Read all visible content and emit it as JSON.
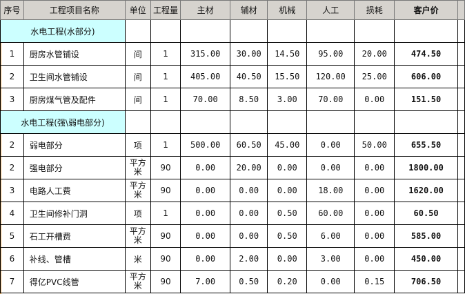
{
  "headers": [
    "序号",
    "工程项目名称",
    "单位",
    "工程量",
    "主材",
    "辅材",
    "机械",
    "人工",
    "损耗",
    "客户价"
  ],
  "rows": [
    {
      "type": "section",
      "label": "水电工程(水部分)"
    },
    {
      "type": "item",
      "no": "1",
      "name": "厨房水管铺设",
      "unit": "间",
      "qty": "1",
      "main": "315.00",
      "aux": "30.00",
      "mech": "14.50",
      "labor": "95.00",
      "loss": "20.00",
      "price": "474.50"
    },
    {
      "type": "item",
      "no": "2",
      "name": "卫生间水管铺设",
      "unit": "间",
      "qty": "1",
      "main": "405.00",
      "aux": "40.50",
      "mech": "15.50",
      "labor": "120.00",
      "loss": "25.00",
      "price": "606.00"
    },
    {
      "type": "item",
      "no": "3",
      "name": "厨房煤气管及配件",
      "unit": "间",
      "qty": "1",
      "main": "70.00",
      "aux": "8.50",
      "mech": "3.00",
      "labor": "70.00",
      "loss": "0.00",
      "price": "151.50"
    },
    {
      "type": "section",
      "label": "水电工程(强\\弱电部分)"
    },
    {
      "type": "item",
      "no": "2",
      "name": "弱电部分",
      "unit": "项",
      "qty": "1",
      "main": "500.00",
      "aux": "60.50",
      "mech": "45.00",
      "labor": "0.00",
      "loss": "50.00",
      "price": "655.50"
    },
    {
      "type": "item",
      "no": "2",
      "name": "强电部分",
      "unit": "平方米",
      "qty": "90",
      "main": "0.00",
      "aux": "20.00",
      "mech": "0.00",
      "labor": "0.00",
      "loss": "0.00",
      "price": "1800.00"
    },
    {
      "type": "item",
      "no": "3",
      "name": "电路人工费",
      "unit": "平方米",
      "qty": "90",
      "main": "0.00",
      "aux": "0.00",
      "mech": "0.00",
      "labor": "18.00",
      "loss": "0.00",
      "price": "1620.00"
    },
    {
      "type": "item",
      "no": "4",
      "name": "卫生间修补门洞",
      "unit": "项",
      "qty": "1",
      "main": "0.00",
      "aux": "0.00",
      "mech": "0.50",
      "labor": "60.00",
      "loss": "0.00",
      "price": "60.50"
    },
    {
      "type": "item",
      "no": "5",
      "name": "石工开槽费",
      "unit": "平方米",
      "qty": "90",
      "main": "0.00",
      "aux": "0.00",
      "mech": "0.50",
      "labor": "6.00",
      "loss": "0.00",
      "price": "585.00"
    },
    {
      "type": "item",
      "no": "6",
      "name": "补线、管槽",
      "unit": "米",
      "qty": "90",
      "main": "0.00",
      "aux": "2.00",
      "mech": "0.00",
      "labor": "3.00",
      "loss": "0.00",
      "price": "450.00"
    },
    {
      "type": "item",
      "no": "7",
      "name": "得亿PVC线管",
      "unit": "平方米",
      "qty": "90",
      "main": "7.00",
      "aux": "0.50",
      "mech": "0.20",
      "labor": "0.00",
      "loss": "0.15",
      "price": "706.50"
    }
  ],
  "colors": {
    "header_bg": "#d6d3ce",
    "section_bg": "#ccffff"
  }
}
